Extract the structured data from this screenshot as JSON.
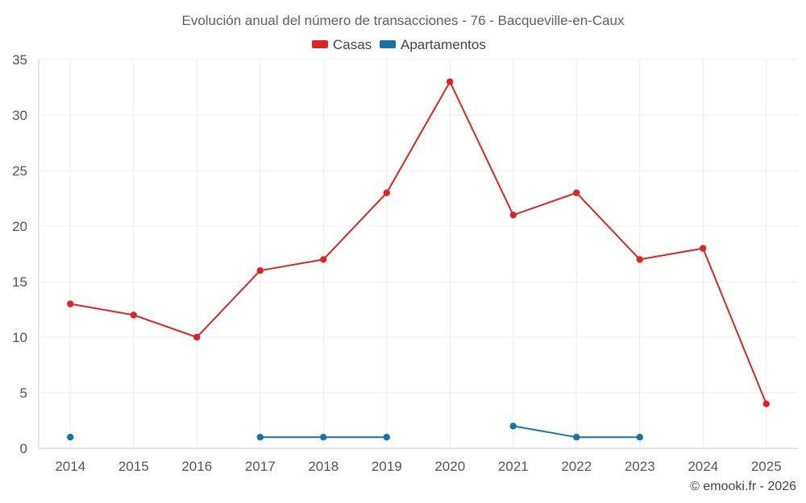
{
  "chart_data": {
    "type": "line",
    "title": "Evolución anual del número de transacciones - 76 - Bacqueville-en-Caux",
    "xlabel": "",
    "ylabel": "",
    "categories": [
      "2014",
      "2015",
      "2016",
      "2017",
      "2018",
      "2019",
      "2020",
      "2021",
      "2022",
      "2023",
      "2024",
      "2025"
    ],
    "ylim": [
      0,
      35
    ],
    "yticks": [
      0,
      5,
      10,
      15,
      20,
      25,
      30,
      35
    ],
    "grid": true,
    "legend_position": "top-center",
    "series": [
      {
        "name": "Casas",
        "color": "#d62728",
        "values": [
          13,
          12,
          10,
          16,
          17,
          23,
          33,
          21,
          23,
          17,
          18,
          4
        ]
      },
      {
        "name": "Apartamentos",
        "color": "#1f6fa0",
        "values": [
          1,
          null,
          null,
          1,
          1,
          1,
          null,
          2,
          1,
          1,
          null,
          null
        ]
      }
    ]
  },
  "credit": "© emooki.fr - 2026"
}
